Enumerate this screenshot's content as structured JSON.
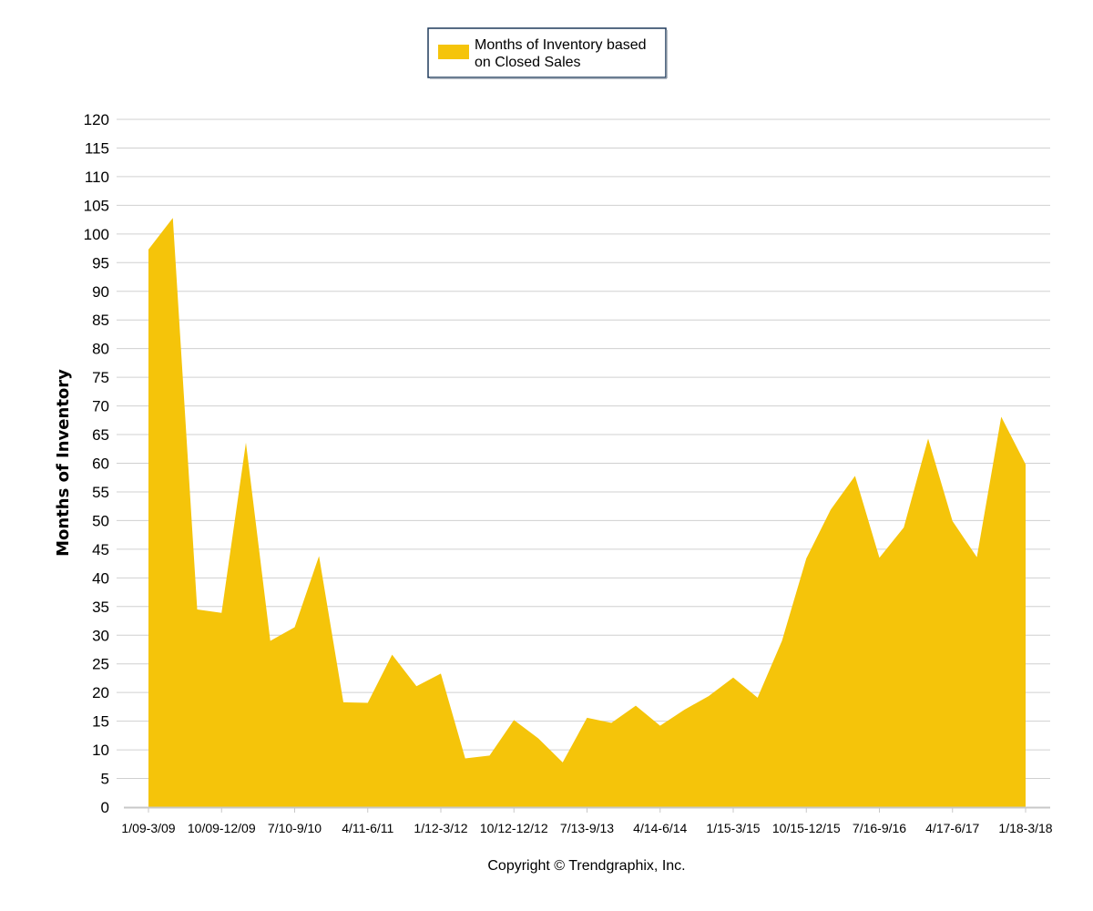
{
  "colors": {
    "area": "#F5C40A",
    "grid": "#D0D0D0",
    "axis": "#C8C8C8",
    "legend_border": "#1F3A5C"
  },
  "legend": {
    "line1": "Months of Inventory based",
    "line2": "on Closed Sales"
  },
  "copyright": "Copyright © Trendgraphix, Inc.",
  "chart_data": {
    "type": "area",
    "title": "",
    "xlabel": "",
    "ylabel": "Months of Inventory",
    "ylim": [
      0,
      120
    ],
    "y_ticks": [
      0,
      5,
      10,
      15,
      20,
      25,
      30,
      35,
      40,
      45,
      50,
      55,
      60,
      65,
      70,
      75,
      80,
      85,
      90,
      95,
      100,
      105,
      110,
      115,
      120
    ],
    "grid": true,
    "legend_position": "top-center",
    "x_tick_labels": [
      "1/09-3/09",
      "10/09-12/09",
      "7/10-9/10",
      "4/11-6/11",
      "1/12-3/12",
      "10/12-12/12",
      "7/13-9/13",
      "4/14-6/14",
      "1/15-3/15",
      "10/15-12/15",
      "7/16-9/16",
      "4/17-6/17",
      "1/18-3/18"
    ],
    "series": [
      {
        "name": "Months of Inventory based on Closed Sales",
        "values": [
          97.3,
          102.8,
          34.5,
          33.9,
          63.6,
          29.0,
          31.4,
          43.8,
          18.3,
          18.2,
          26.6,
          21.1,
          23.3,
          8.5,
          9.0,
          15.2,
          12.0,
          7.8,
          15.6,
          14.7,
          17.7,
          14.2,
          17.0,
          19.4,
          22.6,
          19.1,
          29.0,
          43.4,
          51.9,
          57.8,
          43.5,
          48.8,
          64.3,
          49.9,
          43.6,
          68.1,
          59.8
        ]
      }
    ]
  }
}
